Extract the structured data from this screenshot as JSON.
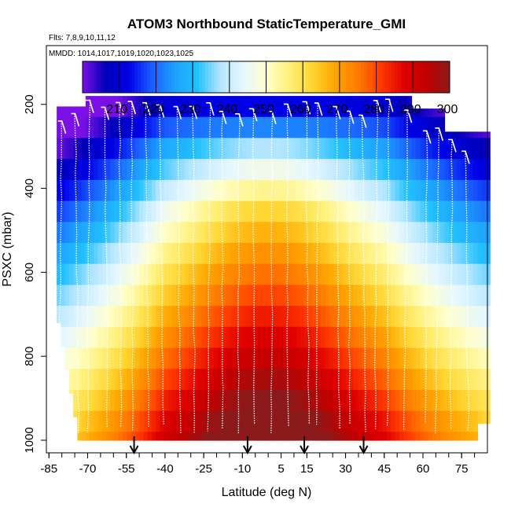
{
  "chart_data": {
    "type": "heatmap",
    "title": "ATOM3 Northbound StaticTemperature_GMI",
    "flights_note": "Flts: 7,8,9,10,11,12",
    "dates_note": "MMDD: 1014,1017,1019,1020,1023,1025",
    "xlabel": "Latitude (deg N)",
    "ylabel": "PSXC (mbar)",
    "xlim": [
      -86,
      85
    ],
    "ylim": [
      1030,
      60
    ],
    "y_reversed": true,
    "x_ticks": [
      -85,
      -70,
      -55,
      -40,
      -25,
      -10,
      5,
      15,
      30,
      45,
      60,
      75
    ],
    "y_ticks": [
      200,
      400,
      600,
      800,
      1000
    ],
    "colorbar": {
      "range": [
        200,
        300
      ],
      "ticks": [
        210,
        220,
        230,
        240,
        250,
        260,
        270,
        280,
        290,
        300
      ],
      "colors": [
        "#7a10e6",
        "#0000b8",
        "#0000e6",
        "#1a5cff",
        "#1ea0ff",
        "#22c0ff",
        "#b3e6ff",
        "#e6f7ff",
        "#ffffcc",
        "#fff07a",
        "#ffd633",
        "#ffa500",
        "#ff7b00",
        "#ff3a00",
        "#e00000",
        "#c00000",
        "#8b1a1a"
      ]
    },
    "temperature_model": {
      "pressure_levels_mbar": [
        180,
        230,
        280,
        330,
        380,
        430,
        480,
        530,
        580,
        630,
        680,
        730,
        780,
        830,
        880,
        930,
        980,
        1000
      ],
      "lat_edges": [
        -82,
        85
      ]
    },
    "arrow_latitudes": [
      -52,
      -8,
      14,
      37
    ],
    "flight_profile_note": "white dotted vertical aircraft profiles"
  }
}
